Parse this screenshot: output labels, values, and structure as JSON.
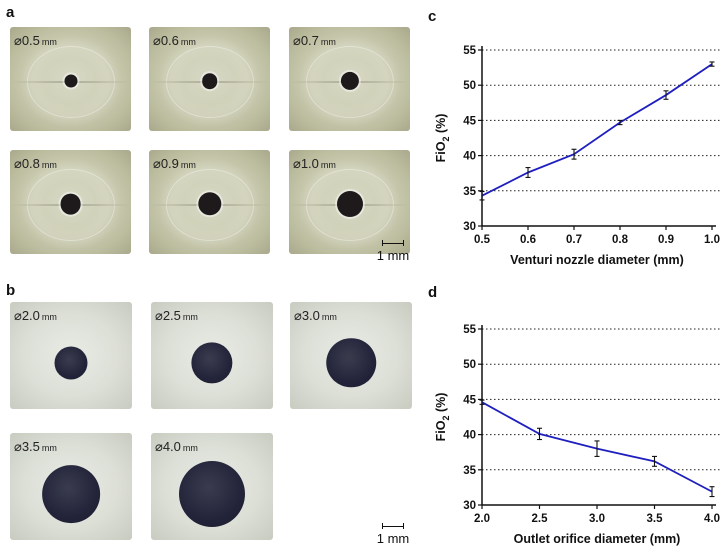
{
  "panel_labels": {
    "a": "a",
    "b": "b",
    "c": "c",
    "d": "d"
  },
  "scale_bar_label": "1 mm",
  "diameter_symbol": "⌀",
  "nozzle_photos": [
    {
      "value": "0.5",
      "unit": "mm",
      "hole_mm": 0.5
    },
    {
      "value": "0.6",
      "unit": "mm",
      "hole_mm": 0.6
    },
    {
      "value": "0.7",
      "unit": "mm",
      "hole_mm": 0.7
    },
    {
      "value": "0.8",
      "unit": "mm",
      "hole_mm": 0.8
    },
    {
      "value": "0.9",
      "unit": "mm",
      "hole_mm": 0.9
    },
    {
      "value": "1.0",
      "unit": "mm",
      "hole_mm": 1.0
    }
  ],
  "orifice_photos": [
    {
      "value": "2.0",
      "unit": "mm",
      "hole_mm": 2.0
    },
    {
      "value": "2.5",
      "unit": "mm",
      "hole_mm": 2.5
    },
    {
      "value": "3.0",
      "unit": "mm",
      "hole_mm": 3.0
    },
    {
      "value": "3.5",
      "unit": "mm",
      "hole_mm": 3.5
    },
    {
      "value": "4.0",
      "unit": "mm",
      "hole_mm": 4.0
    }
  ],
  "chart_data": [
    {
      "type": "line",
      "panel": "c",
      "x": [
        0.5,
        0.6,
        0.7,
        0.8,
        0.9,
        1.0
      ],
      "x_tick_labels": [
        "0.5",
        "0.6",
        "0.7",
        "0.8",
        "0.9",
        "1.0"
      ],
      "series": [
        {
          "values": [
            34.3,
            37.6,
            40.2,
            44.7,
            48.6,
            53.0
          ],
          "errors": [
            0.6,
            0.7,
            0.7,
            0.3,
            0.6,
            0.3
          ]
        }
      ],
      "xlabel": "Venturi nozzle diameter (mm)",
      "ylabel_main": "FiO",
      "ylabel_sub": "2",
      "ylabel_suffix": " (%)",
      "xlim": [
        0.5,
        1.0
      ],
      "ylim": [
        30,
        55
      ],
      "y_ticks": [
        30,
        35,
        40,
        45,
        50,
        55
      ],
      "grid": "horizontal dotted",
      "line_color": "#1f1fbf"
    },
    {
      "type": "line",
      "panel": "d",
      "x": [
        2.0,
        2.5,
        3.0,
        3.5,
        4.0
      ],
      "x_tick_labels": [
        "2.0",
        "2.5",
        "3.0",
        "3.5",
        "4.0"
      ],
      "series": [
        {
          "values": [
            44.6,
            40.1,
            38.0,
            36.2,
            31.9
          ],
          "errors": [
            0.3,
            0.8,
            1.1,
            0.7,
            0.7
          ]
        }
      ],
      "xlabel": "Outlet orifice diameter (mm)",
      "ylabel_main": "FiO",
      "ylabel_sub": "2",
      "ylabel_suffix": " (%)",
      "xlim": [
        2.0,
        4.0
      ],
      "ylim": [
        30,
        55
      ],
      "y_ticks": [
        30,
        35,
        40,
        45,
        50,
        55
      ],
      "grid": "horizontal dotted",
      "line_color": "#1f1fbf"
    }
  ]
}
